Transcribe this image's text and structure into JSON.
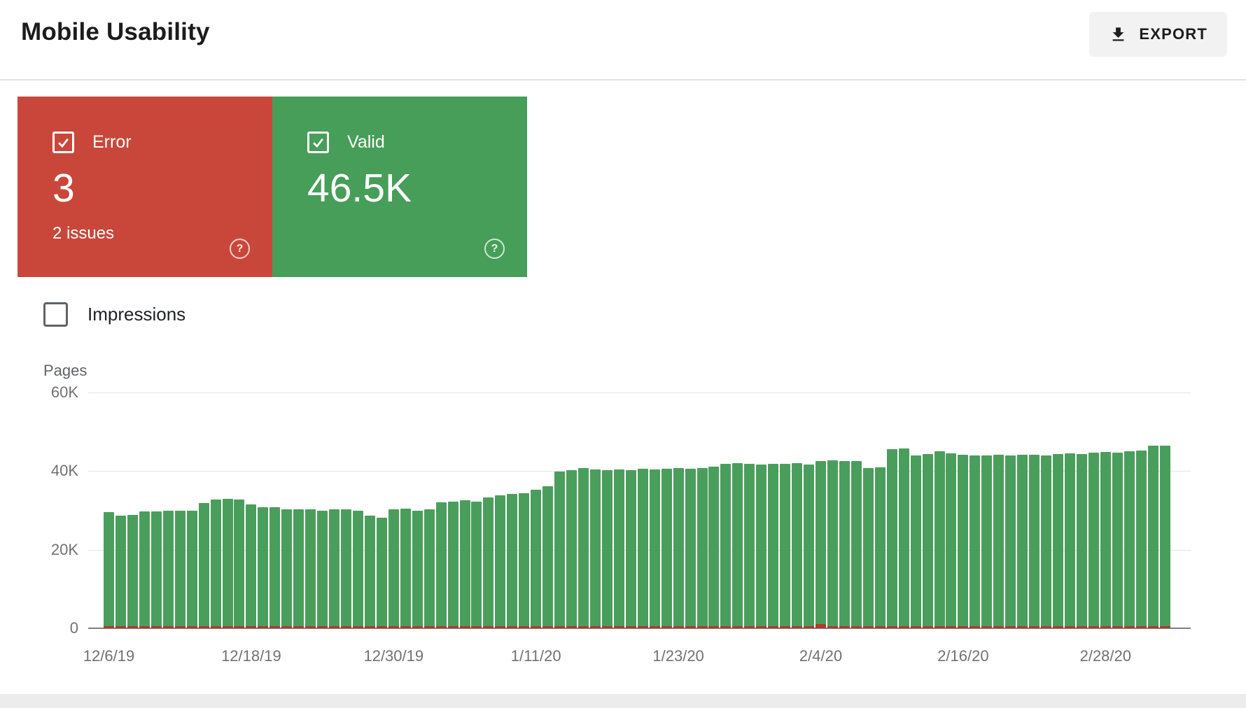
{
  "header": {
    "title": "Mobile Usability",
    "export_label": "EXPORT"
  },
  "icons": {
    "export_icon": "download-icon",
    "card_checkbox_icon": "checked-checkbox-icon",
    "help_glyph": "?",
    "impressions_checkbox_icon": "unchecked-checkbox-icon"
  },
  "cards": {
    "error": {
      "label": "Error",
      "value": "3",
      "sub": "2 issues",
      "checked": true,
      "color": "#c9473a"
    },
    "valid": {
      "label": "Valid",
      "value": "46.5K",
      "checked": true,
      "color": "#469e58"
    }
  },
  "impressions": {
    "label": "Impressions",
    "checked": false
  },
  "colors": {
    "bar_green": "#4a9e5c",
    "bar_error_red": "#b2392c",
    "grid": "#e5e5e5",
    "baseline": "#7f7f7f",
    "axis_text": "#717171",
    "export_bg": "#f2f2f2"
  },
  "chart_data": {
    "type": "bar",
    "title": "",
    "xlabel": "",
    "ylabel": "Pages",
    "ylim": [
      0,
      60000
    ],
    "grid": true,
    "legend": "none",
    "stacked": true,
    "y_ticks": [
      {
        "label": "60K",
        "value": 60000
      },
      {
        "label": "40K",
        "value": 40000
      },
      {
        "label": "20K",
        "value": 20000
      },
      {
        "label": "0",
        "value": 0
      }
    ],
    "x_tick_indices": [
      0,
      12,
      24,
      36,
      48,
      60,
      72,
      84
    ],
    "x_tick_labels": [
      "12/6/19",
      "12/18/19",
      "12/30/19",
      "1/11/20",
      "1/23/20",
      "2/4/20",
      "2/16/20",
      "2/28/20"
    ],
    "dates": [
      "12/6/19",
      "12/7/19",
      "12/8/19",
      "12/9/19",
      "12/10/19",
      "12/11/19",
      "12/12/19",
      "12/13/19",
      "12/14/19",
      "12/15/19",
      "12/16/19",
      "12/17/19",
      "12/18/19",
      "12/19/19",
      "12/20/19",
      "12/21/19",
      "12/22/19",
      "12/23/19",
      "12/24/19",
      "12/25/19",
      "12/26/19",
      "12/27/19",
      "12/28/19",
      "12/29/19",
      "12/30/19",
      "12/31/19",
      "1/1/20",
      "1/2/20",
      "1/3/20",
      "1/4/20",
      "1/5/20",
      "1/6/20",
      "1/7/20",
      "1/8/20",
      "1/9/20",
      "1/10/20",
      "1/11/20",
      "1/12/20",
      "1/13/20",
      "1/14/20",
      "1/15/20",
      "1/16/20",
      "1/17/20",
      "1/18/20",
      "1/19/20",
      "1/20/20",
      "1/21/20",
      "1/22/20",
      "1/23/20",
      "1/24/20",
      "1/25/20",
      "1/26/20",
      "1/27/20",
      "1/28/20",
      "1/29/20",
      "1/30/20",
      "1/31/20",
      "2/1/20",
      "2/2/20",
      "2/3/20",
      "2/4/20",
      "2/5/20",
      "2/6/20",
      "2/7/20",
      "2/8/20",
      "2/9/20",
      "2/10/20",
      "2/11/20",
      "2/12/20",
      "2/13/20",
      "2/14/20",
      "2/15/20",
      "2/16/20",
      "2/17/20",
      "2/18/20",
      "2/19/20",
      "2/20/20",
      "2/21/20",
      "2/22/20",
      "2/23/20",
      "2/24/20",
      "2/25/20",
      "2/26/20",
      "2/27/20",
      "2/28/20",
      "2/29/20",
      "3/1/20",
      "3/2/20",
      "3/3/20",
      "3/4/20"
    ],
    "series": [
      {
        "name": "Valid",
        "color": "#4a9e5c",
        "values": [
          29500,
          28600,
          28800,
          29800,
          29800,
          29900,
          30000,
          30000,
          31800,
          32800,
          33000,
          32800,
          31500,
          30800,
          30800,
          30300,
          30200,
          30200,
          30000,
          30200,
          30200,
          30000,
          28700,
          28200,
          30300,
          30500,
          30000,
          30200,
          32000,
          32300,
          32500,
          32200,
          33300,
          33800,
          34200,
          34400,
          35300,
          36200,
          39800,
          40200,
          40700,
          40500,
          40300,
          40500,
          40300,
          40600,
          40400,
          40600,
          40700,
          40600,
          40800,
          41200,
          41800,
          42000,
          41800,
          41700,
          41800,
          41800,
          42000,
          41700,
          42500,
          42800,
          42500,
          42600,
          40700,
          41000,
          45500,
          45700,
          44000,
          44300,
          45000,
          44500,
          44200,
          44000,
          44000,
          44200,
          44000,
          44100,
          44200,
          44000,
          44300,
          44500,
          44300,
          44600,
          44800,
          44600,
          45000,
          45300,
          46500,
          46500
        ]
      },
      {
        "name": "Error",
        "color": "#b2392c",
        "values": [
          3,
          3,
          3,
          3,
          3,
          3,
          3,
          3,
          3,
          3,
          3,
          3,
          3,
          3,
          3,
          3,
          3,
          3,
          3,
          3,
          3,
          3,
          3,
          3,
          3,
          3,
          3,
          3,
          3,
          3,
          3,
          3,
          3,
          3,
          3,
          3,
          3,
          3,
          3,
          3,
          3,
          3,
          3,
          3,
          3,
          3,
          3,
          3,
          3,
          3,
          3,
          3,
          3,
          3,
          3,
          3,
          3,
          3,
          3,
          3,
          1100,
          500,
          3,
          3,
          3,
          3,
          3,
          3,
          3,
          3,
          3,
          3,
          3,
          3,
          3,
          3,
          3,
          3,
          3,
          3,
          3,
          3,
          3,
          3,
          3,
          3,
          3,
          3,
          3,
          3
        ]
      }
    ]
  }
}
